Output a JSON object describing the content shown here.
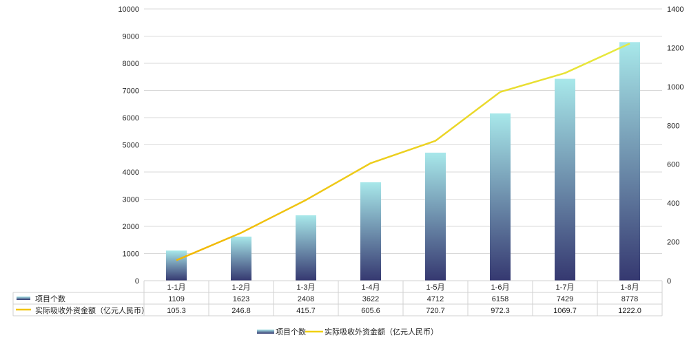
{
  "chart_data": {
    "type": "bar+line",
    "categories": [
      "1-1月",
      "1-2月",
      "1-3月",
      "1-4月",
      "1-5月",
      "1-6月",
      "1-7月",
      "1-8月"
    ],
    "series": [
      {
        "name": "项目个数",
        "type": "bar",
        "axis": "left",
        "values": [
          1109,
          1623,
          2408,
          3622,
          4712,
          6158,
          7429,
          8778
        ],
        "labels": [
          "1109",
          "1623",
          "2408",
          "3622",
          "4712",
          "6158",
          "7429",
          "8778"
        ],
        "color_top": "#a8e8ea",
        "color_bottom": "#353870"
      },
      {
        "name": "实际吸收外资金额（亿元人民币）",
        "type": "line",
        "axis": "right",
        "values": [
          105.3,
          246.8,
          415.7,
          605.6,
          720.7,
          972.3,
          1069.7,
          1222.0
        ],
        "labels": [
          "105.3",
          "246.8",
          "415.7",
          "605.6",
          "720.7",
          "972.3",
          "1069.7",
          "1222.0"
        ],
        "color_start": "#f2b600",
        "color_end": "#e6ea40"
      }
    ],
    "y_left": {
      "min": 0,
      "max": 10000,
      "ticks": [
        "0",
        "1000",
        "2000",
        "3000",
        "4000",
        "5000",
        "6000",
        "7000",
        "8000",
        "9000",
        "10000"
      ]
    },
    "y_right": {
      "min": 0,
      "max": 1400,
      "ticks": [
        "0",
        "200",
        "400",
        "600",
        "800",
        "1000",
        "1200",
        "1400"
      ]
    },
    "grid": true,
    "data_table": true,
    "legend_position": "bottom"
  }
}
